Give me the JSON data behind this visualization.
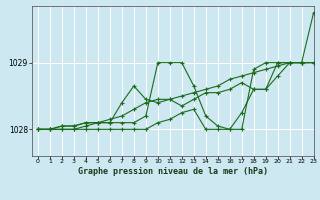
{
  "title": "Graphe pression niveau de la mer (hPa)",
  "bg_color": "#cde8f0",
  "grid_color": "#ffffff",
  "line_color": "#1a6b1a",
  "xlim": [
    -0.5,
    23
  ],
  "ylim": [
    1027.6,
    1029.85
  ],
  "yticks": [
    1028,
    1029
  ],
  "xticks": [
    0,
    1,
    2,
    3,
    4,
    5,
    6,
    7,
    8,
    9,
    10,
    11,
    12,
    13,
    14,
    15,
    16,
    17,
    18,
    19,
    20,
    21,
    22,
    23
  ],
  "series": [
    [
      1028.0,
      1028.0,
      1028.05,
      1028.05,
      1028.1,
      1028.1,
      1028.1,
      1028.1,
      1028.1,
      1028.2,
      1029.0,
      1029.0,
      1029.0,
      1028.65,
      1028.2,
      1028.05,
      1028.0,
      1028.0,
      1028.9,
      1029.0,
      1029.0,
      1029.0,
      1029.0,
      1029.75
    ],
    [
      1028.0,
      1028.0,
      1028.05,
      1028.05,
      1028.1,
      1028.1,
      1028.1,
      1028.4,
      1028.65,
      1028.45,
      1028.4,
      1028.45,
      1028.35,
      1028.45,
      1028.55,
      1028.55,
      1028.6,
      1028.7,
      1028.6,
      1028.6,
      1029.0,
      1029.0,
      1029.0,
      1029.0
    ],
    [
      1028.0,
      1028.0,
      1028.0,
      1028.0,
      1028.0,
      1028.0,
      1028.0,
      1028.0,
      1028.0,
      1028.0,
      1028.1,
      1028.15,
      1028.25,
      1028.3,
      1028.0,
      1028.0,
      1028.0,
      1028.25,
      1028.6,
      1028.6,
      1028.8,
      1029.0,
      1029.0,
      1029.0
    ],
    [
      1028.0,
      1028.0,
      1028.0,
      1028.0,
      1028.05,
      1028.1,
      1028.15,
      1028.2,
      1028.3,
      1028.4,
      1028.45,
      1028.45,
      1028.5,
      1028.55,
      1028.6,
      1028.65,
      1028.75,
      1028.8,
      1028.85,
      1028.9,
      1028.95,
      1029.0,
      1029.0,
      1029.0
    ]
  ]
}
